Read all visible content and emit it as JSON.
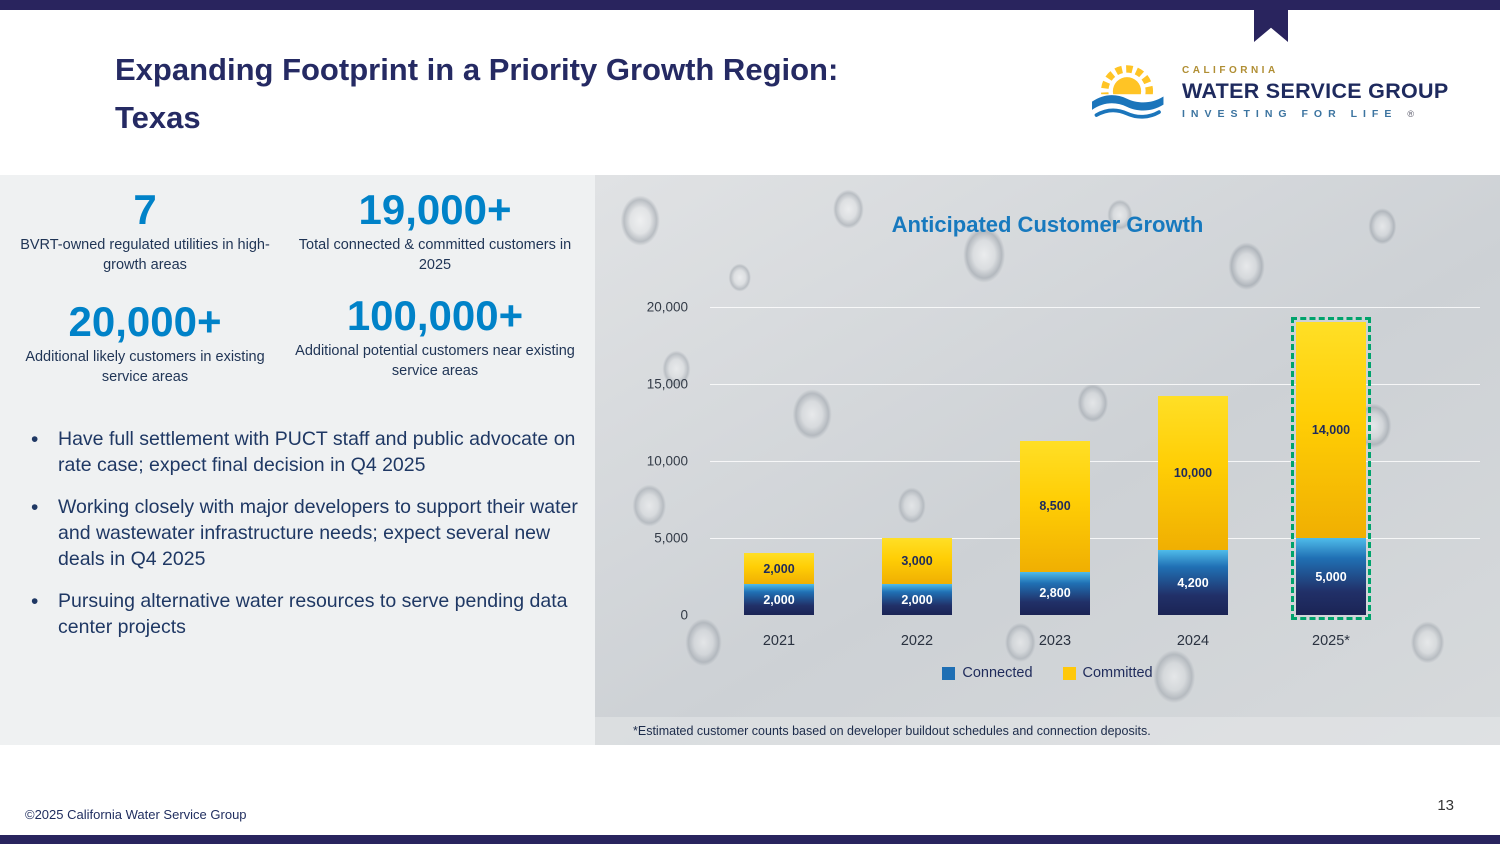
{
  "header": {
    "title": "Expanding Footprint in a Priority Growth Region: Texas"
  },
  "logo": {
    "region": "CALIFORNIA",
    "name": "WATER SERVICE GROUP",
    "tagline": "INVESTING FOR LIFE",
    "registered": "®"
  },
  "stats": [
    {
      "value": "7",
      "caption": "BVRT-owned regulated utilities in high-growth areas"
    },
    {
      "value": "19,000+",
      "caption": "Total connected & committed customers in 2025"
    },
    {
      "value": "20,000+",
      "caption": "Additional likely customers in existing service areas"
    },
    {
      "value": "100,000+",
      "caption": "Additional potential customers near existing service areas"
    }
  ],
  "bullets": [
    "Have full settlement with PUCT staff and public advocate on rate case; expect final decision in Q4 2025",
    "Working closely with major developers to support their water and wastewater infrastructure needs; expect several new deals in Q4 2025",
    "Pursuing alternative water resources to serve pending data center projects"
  ],
  "chart_data": {
    "type": "bar",
    "stacked": true,
    "title": "Anticipated Customer Growth",
    "categories": [
      "2021",
      "2022",
      "2023",
      "2024",
      "2025*"
    ],
    "series": [
      {
        "name": "Connected",
        "color": "#1E6FB4",
        "values": [
          2000,
          2000,
          2800,
          4200,
          5000
        ],
        "labels": [
          "2,000",
          "2,000",
          "2,800",
          "4,200",
          "5,000"
        ]
      },
      {
        "name": "Committed",
        "color": "#FFC80A",
        "values": [
          2000,
          3000,
          8500,
          10000,
          14000
        ],
        "labels": [
          "2,000",
          "3,000",
          "8,500",
          "10,000",
          "14,000"
        ]
      }
    ],
    "ylim": [
      0,
      20000
    ],
    "yticks": [
      {
        "value": 0,
        "label": "0"
      },
      {
        "value": 5000,
        "label": "5,000"
      },
      {
        "value": 10000,
        "label": "10,000"
      },
      {
        "value": 15000,
        "label": "15,000"
      },
      {
        "value": 20000,
        "label": "20,000"
      }
    ],
    "grid": true,
    "legend_position": "bottom",
    "highlight_category": "2025*",
    "footnote": "*Estimated customer counts based on developer buildout schedules and connection deposits."
  },
  "footer": {
    "copyright": "©2025 California Water Service Group",
    "page_number": "13"
  },
  "colors": {
    "navy_bar": "#29245E",
    "title_navy": "#252A63",
    "stat_blue": "#0082C8",
    "chart_title_blue": "#1779BE",
    "committed_yellow": "#FFC80A",
    "connected_blue": "#1E6FB4",
    "highlight_dash_teal": "#00A36C"
  }
}
